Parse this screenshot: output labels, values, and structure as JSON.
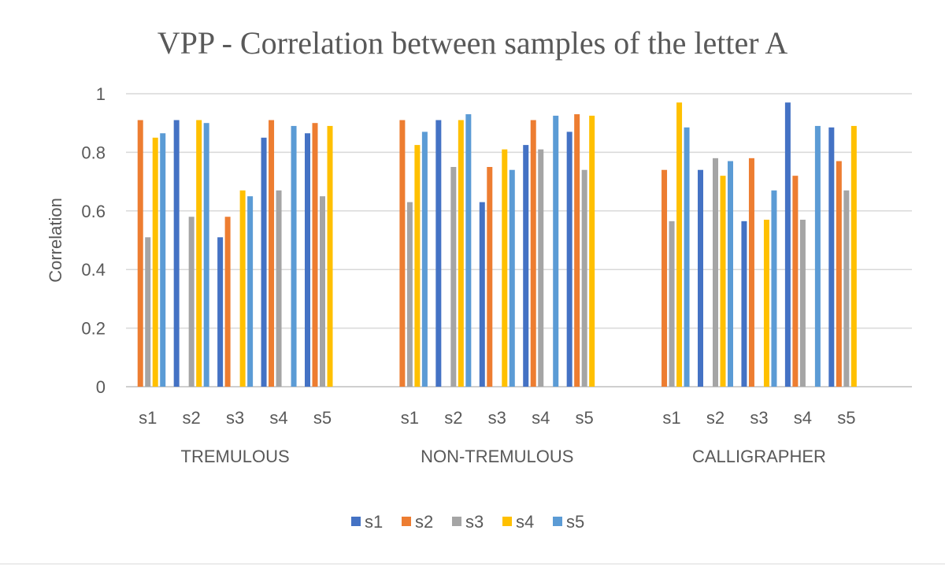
{
  "chart_data": {
    "type": "bar",
    "title": "VPP - Correlation between samples of the letter A",
    "ylabel": "Correlation",
    "xlabel": "",
    "ylim": [
      0,
      1
    ],
    "yticks": [
      "0",
      "0.2",
      "0.4",
      "0.6",
      "0.8",
      "1"
    ],
    "grid": true,
    "legend_position": "bottom",
    "groups": [
      {
        "name": "TREMULOUS",
        "categories": [
          "s1",
          "s2",
          "s3",
          "s4",
          "s5"
        ],
        "series": [
          {
            "name": "s1",
            "values": [
              null,
              0.91,
              0.51,
              0.85,
              0.865
            ]
          },
          {
            "name": "s2",
            "values": [
              0.91,
              null,
              0.58,
              0.91,
              0.9
            ]
          },
          {
            "name": "s3",
            "values": [
              0.51,
              0.58,
              null,
              0.67,
              0.65
            ]
          },
          {
            "name": "s4",
            "values": [
              0.85,
              0.91,
              0.67,
              null,
              0.89
            ]
          },
          {
            "name": "s5",
            "values": [
              0.865,
              0.9,
              0.65,
              0.89,
              null
            ]
          }
        ]
      },
      {
        "name": "NON-TREMULOUS",
        "categories": [
          "s1",
          "s2",
          "s3",
          "s4",
          "s5"
        ],
        "series": [
          {
            "name": "s1",
            "values": [
              null,
              0.91,
              0.63,
              0.825,
              0.87
            ]
          },
          {
            "name": "s2",
            "values": [
              0.91,
              null,
              0.75,
              0.91,
              0.93
            ]
          },
          {
            "name": "s3",
            "values": [
              0.63,
              0.75,
              null,
              0.81,
              0.74
            ]
          },
          {
            "name": "s4",
            "values": [
              0.825,
              0.91,
              0.81,
              null,
              0.925
            ]
          },
          {
            "name": "s5",
            "values": [
              0.87,
              0.93,
              0.74,
              0.925,
              null
            ]
          }
        ]
      },
      {
        "name": "CALLIGRAPHER",
        "categories": [
          "s1",
          "s2",
          "s3",
          "s4",
          "s5"
        ],
        "series": [
          {
            "name": "s1",
            "values": [
              null,
              0.74,
              0.565,
              0.97,
              0.885
            ]
          },
          {
            "name": "s2",
            "values": [
              0.74,
              null,
              0.78,
              0.72,
              0.77
            ]
          },
          {
            "name": "s3",
            "values": [
              0.565,
              0.78,
              null,
              0.57,
              0.67
            ]
          },
          {
            "name": "s4",
            "values": [
              0.97,
              0.72,
              0.57,
              null,
              0.89
            ]
          },
          {
            "name": "s5",
            "values": [
              0.885,
              0.77,
              0.67,
              0.89,
              null
            ]
          }
        ]
      }
    ],
    "colors": {
      "s1": "#4472c4",
      "s2": "#ed7d31",
      "s3": "#a5a5a5",
      "s4": "#ffc000",
      "s5": "#5b9bd5"
    },
    "legend": [
      "s1",
      "s2",
      "s3",
      "s4",
      "s5"
    ]
  }
}
